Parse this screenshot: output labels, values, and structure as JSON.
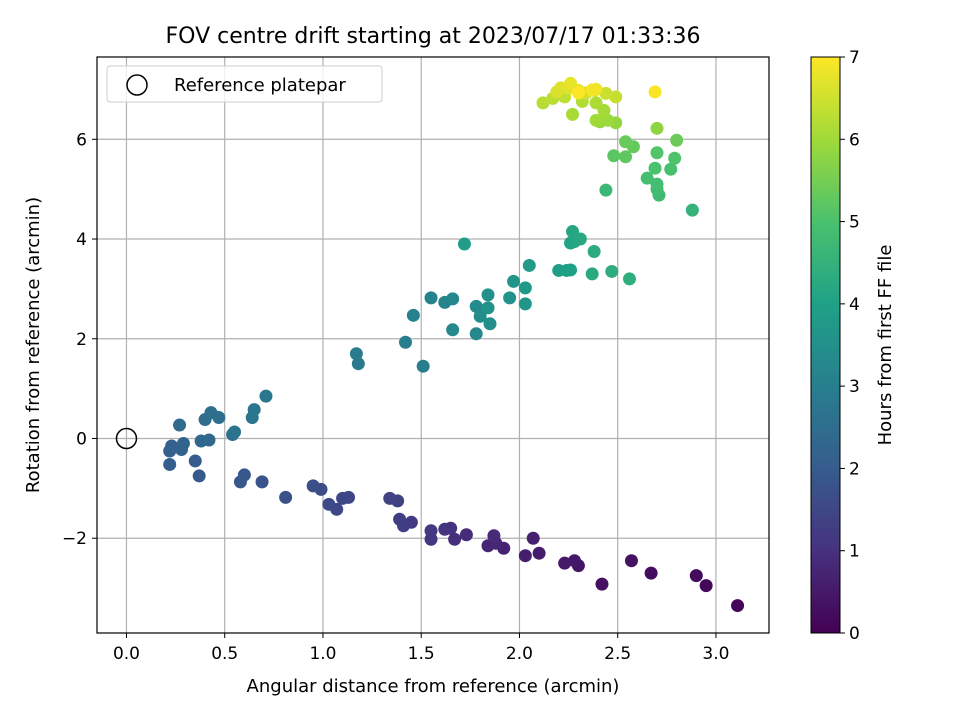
{
  "chart_data": {
    "type": "scatter",
    "title": "FOV centre drift starting at 2023/07/17 01:33:36",
    "xlabel": "Angular distance from reference (arcmin)",
    "ylabel": "Rotation from reference (arcmin)",
    "xlim": [
      -0.15,
      3.27
    ],
    "ylim": [
      -3.9,
      7.65
    ],
    "xticks": [
      0.0,
      0.5,
      1.0,
      1.5,
      2.0,
      2.5,
      3.0
    ],
    "xtick_labels": [
      "0.0",
      "0.5",
      "1.0",
      "1.5",
      "2.0",
      "2.5",
      "3.0"
    ],
    "yticks": [
      -2,
      0,
      2,
      4,
      6
    ],
    "ytick_labels": [
      "−2",
      "0",
      "2",
      "4",
      "6"
    ],
    "grid": true,
    "legend": {
      "placement": "top-left",
      "label": "Reference platepar"
    },
    "reference_point": [
      0,
      0
    ],
    "colorbar": {
      "label": "Hours from first FF file",
      "range": [
        0,
        7
      ],
      "ticks": [
        "0",
        "1",
        "2",
        "3",
        "4",
        "5",
        "6",
        "7"
      ],
      "colormap": "viridis"
    },
    "points": [
      [
        3.11,
        -3.35,
        0.1
      ],
      [
        2.95,
        -2.95,
        0.15
      ],
      [
        2.9,
        -2.75,
        0.2
      ],
      [
        2.67,
        -2.7,
        0.25
      ],
      [
        2.42,
        -2.92,
        0.3
      ],
      [
        2.57,
        -2.45,
        0.35
      ],
      [
        2.3,
        -2.55,
        0.4
      ],
      [
        2.28,
        -2.45,
        0.45
      ],
      [
        2.23,
        -2.5,
        0.5
      ],
      [
        2.1,
        -2.3,
        0.55
      ],
      [
        2.03,
        -2.35,
        0.6
      ],
      [
        2.07,
        -2.0,
        0.65
      ],
      [
        1.92,
        -2.2,
        0.7
      ],
      [
        1.84,
        -2.15,
        0.75
      ],
      [
        1.88,
        -2.1,
        0.8
      ],
      [
        1.87,
        -1.95,
        0.85
      ],
      [
        1.73,
        -1.93,
        0.9
      ],
      [
        1.67,
        -2.02,
        0.95
      ],
      [
        1.65,
        -1.8,
        1.0
      ],
      [
        1.62,
        -1.82,
        1.05
      ],
      [
        1.55,
        -2.02,
        1.1
      ],
      [
        1.55,
        -1.85,
        1.15
      ],
      [
        1.45,
        -1.68,
        1.2
      ],
      [
        1.41,
        -1.75,
        1.25
      ],
      [
        1.39,
        -1.62,
        1.3
      ],
      [
        1.38,
        -1.25,
        1.35
      ],
      [
        1.34,
        -1.2,
        1.4
      ],
      [
        1.13,
        -1.18,
        1.45
      ],
      [
        1.1,
        -1.2,
        1.5
      ],
      [
        1.07,
        -1.42,
        1.55
      ],
      [
        1.03,
        -1.32,
        1.6
      ],
      [
        0.99,
        -1.02,
        1.65
      ],
      [
        0.95,
        -0.95,
        1.7
      ],
      [
        0.81,
        -1.18,
        1.75
      ],
      [
        0.69,
        -0.87,
        1.8
      ],
      [
        0.6,
        -0.73,
        1.85
      ],
      [
        0.58,
        -0.87,
        1.9
      ],
      [
        0.37,
        -0.75,
        1.95
      ],
      [
        0.35,
        -0.45,
        2.0
      ],
      [
        0.22,
        -0.52,
        2.05
      ],
      [
        0.22,
        -0.25,
        2.1
      ],
      [
        0.23,
        -0.15,
        2.15
      ],
      [
        0.28,
        -0.22,
        2.2
      ],
      [
        0.29,
        -0.1,
        2.25
      ],
      [
        0.38,
        -0.05,
        2.3
      ],
      [
        0.42,
        -0.03,
        2.35
      ],
      [
        0.27,
        0.27,
        2.4
      ],
      [
        0.4,
        0.38,
        2.45
      ],
      [
        0.43,
        0.52,
        2.5
      ],
      [
        0.47,
        0.42,
        2.55
      ],
      [
        0.54,
        0.08,
        2.6
      ],
      [
        0.55,
        0.13,
        2.65
      ],
      [
        0.64,
        0.42,
        2.7
      ],
      [
        0.65,
        0.58,
        2.75
      ],
      [
        0.71,
        0.85,
        2.8
      ],
      [
        1.18,
        1.5,
        2.85
      ],
      [
        1.17,
        1.7,
        2.9
      ],
      [
        1.42,
        1.93,
        2.95
      ],
      [
        1.51,
        1.45,
        3.0
      ],
      [
        1.46,
        2.47,
        3.05
      ],
      [
        1.55,
        2.82,
        3.1
      ],
      [
        1.62,
        2.73,
        3.15
      ],
      [
        1.66,
        2.8,
        3.2
      ],
      [
        1.66,
        2.18,
        3.25
      ],
      [
        1.78,
        2.1,
        3.3
      ],
      [
        1.78,
        2.65,
        3.35
      ],
      [
        1.8,
        2.45,
        3.4
      ],
      [
        1.85,
        2.3,
        3.45
      ],
      [
        1.84,
        2.88,
        3.5
      ],
      [
        1.84,
        2.62,
        3.55
      ],
      [
        1.95,
        2.82,
        3.6
      ],
      [
        1.97,
        3.15,
        3.65
      ],
      [
        2.03,
        2.7,
        3.7
      ],
      [
        2.03,
        3.02,
        3.75
      ],
      [
        2.05,
        3.47,
        3.8
      ],
      [
        1.72,
        3.9,
        3.85
      ],
      [
        2.2,
        3.37,
        3.9
      ],
      [
        2.24,
        3.37,
        3.95
      ],
      [
        2.26,
        3.38,
        4.0
      ],
      [
        2.26,
        3.92,
        4.05
      ],
      [
        2.28,
        3.95,
        4.1
      ],
      [
        2.27,
        4.15,
        4.15
      ],
      [
        2.31,
        4.0,
        4.2
      ],
      [
        2.37,
        3.3,
        4.25
      ],
      [
        2.38,
        3.75,
        4.3
      ],
      [
        2.47,
        3.35,
        4.35
      ],
      [
        2.56,
        3.2,
        4.4
      ],
      [
        2.88,
        4.58,
        4.5
      ],
      [
        2.44,
        4.98,
        4.7
      ],
      [
        2.71,
        4.88,
        4.75
      ],
      [
        2.7,
        5.0,
        4.8
      ],
      [
        2.7,
        5.1,
        4.85
      ],
      [
        2.65,
        5.22,
        4.9
      ],
      [
        2.77,
        5.4,
        4.95
      ],
      [
        2.69,
        5.42,
        5.0
      ],
      [
        2.79,
        5.62,
        5.05
      ],
      [
        2.7,
        5.73,
        5.1
      ],
      [
        2.48,
        5.67,
        5.2
      ],
      [
        2.54,
        5.65,
        5.25
      ],
      [
        2.58,
        5.85,
        5.3
      ],
      [
        2.54,
        5.95,
        5.35
      ],
      [
        2.8,
        5.98,
        5.4
      ],
      [
        2.7,
        6.22,
        5.8
      ],
      [
        2.49,
        6.33,
        5.85
      ],
      [
        2.41,
        6.35,
        5.9
      ],
      [
        2.45,
        6.38,
        5.95
      ],
      [
        2.39,
        6.38,
        6.0
      ],
      [
        2.43,
        6.58,
        6.05
      ],
      [
        2.27,
        6.5,
        6.1
      ],
      [
        2.39,
        6.73,
        6.15
      ],
      [
        2.32,
        6.76,
        6.2
      ],
      [
        2.12,
        6.73,
        6.25
      ],
      [
        2.17,
        6.82,
        6.3
      ],
      [
        2.23,
        6.85,
        6.35
      ],
      [
        2.49,
        6.85,
        6.4
      ],
      [
        2.44,
        6.92,
        6.45
      ],
      [
        2.38,
        6.98,
        6.5
      ],
      [
        2.34,
        6.93,
        6.55
      ],
      [
        2.19,
        6.95,
        6.6
      ],
      [
        2.21,
        7.03,
        6.65
      ],
      [
        2.25,
        7.03,
        6.7
      ],
      [
        2.26,
        7.12,
        6.75
      ],
      [
        2.3,
        6.98,
        6.8
      ],
      [
        2.39,
        7.0,
        6.85
      ],
      [
        2.37,
        6.99,
        6.9
      ],
      [
        2.69,
        6.95,
        6.95
      ],
      [
        2.3,
        6.93,
        7.0
      ]
    ]
  }
}
